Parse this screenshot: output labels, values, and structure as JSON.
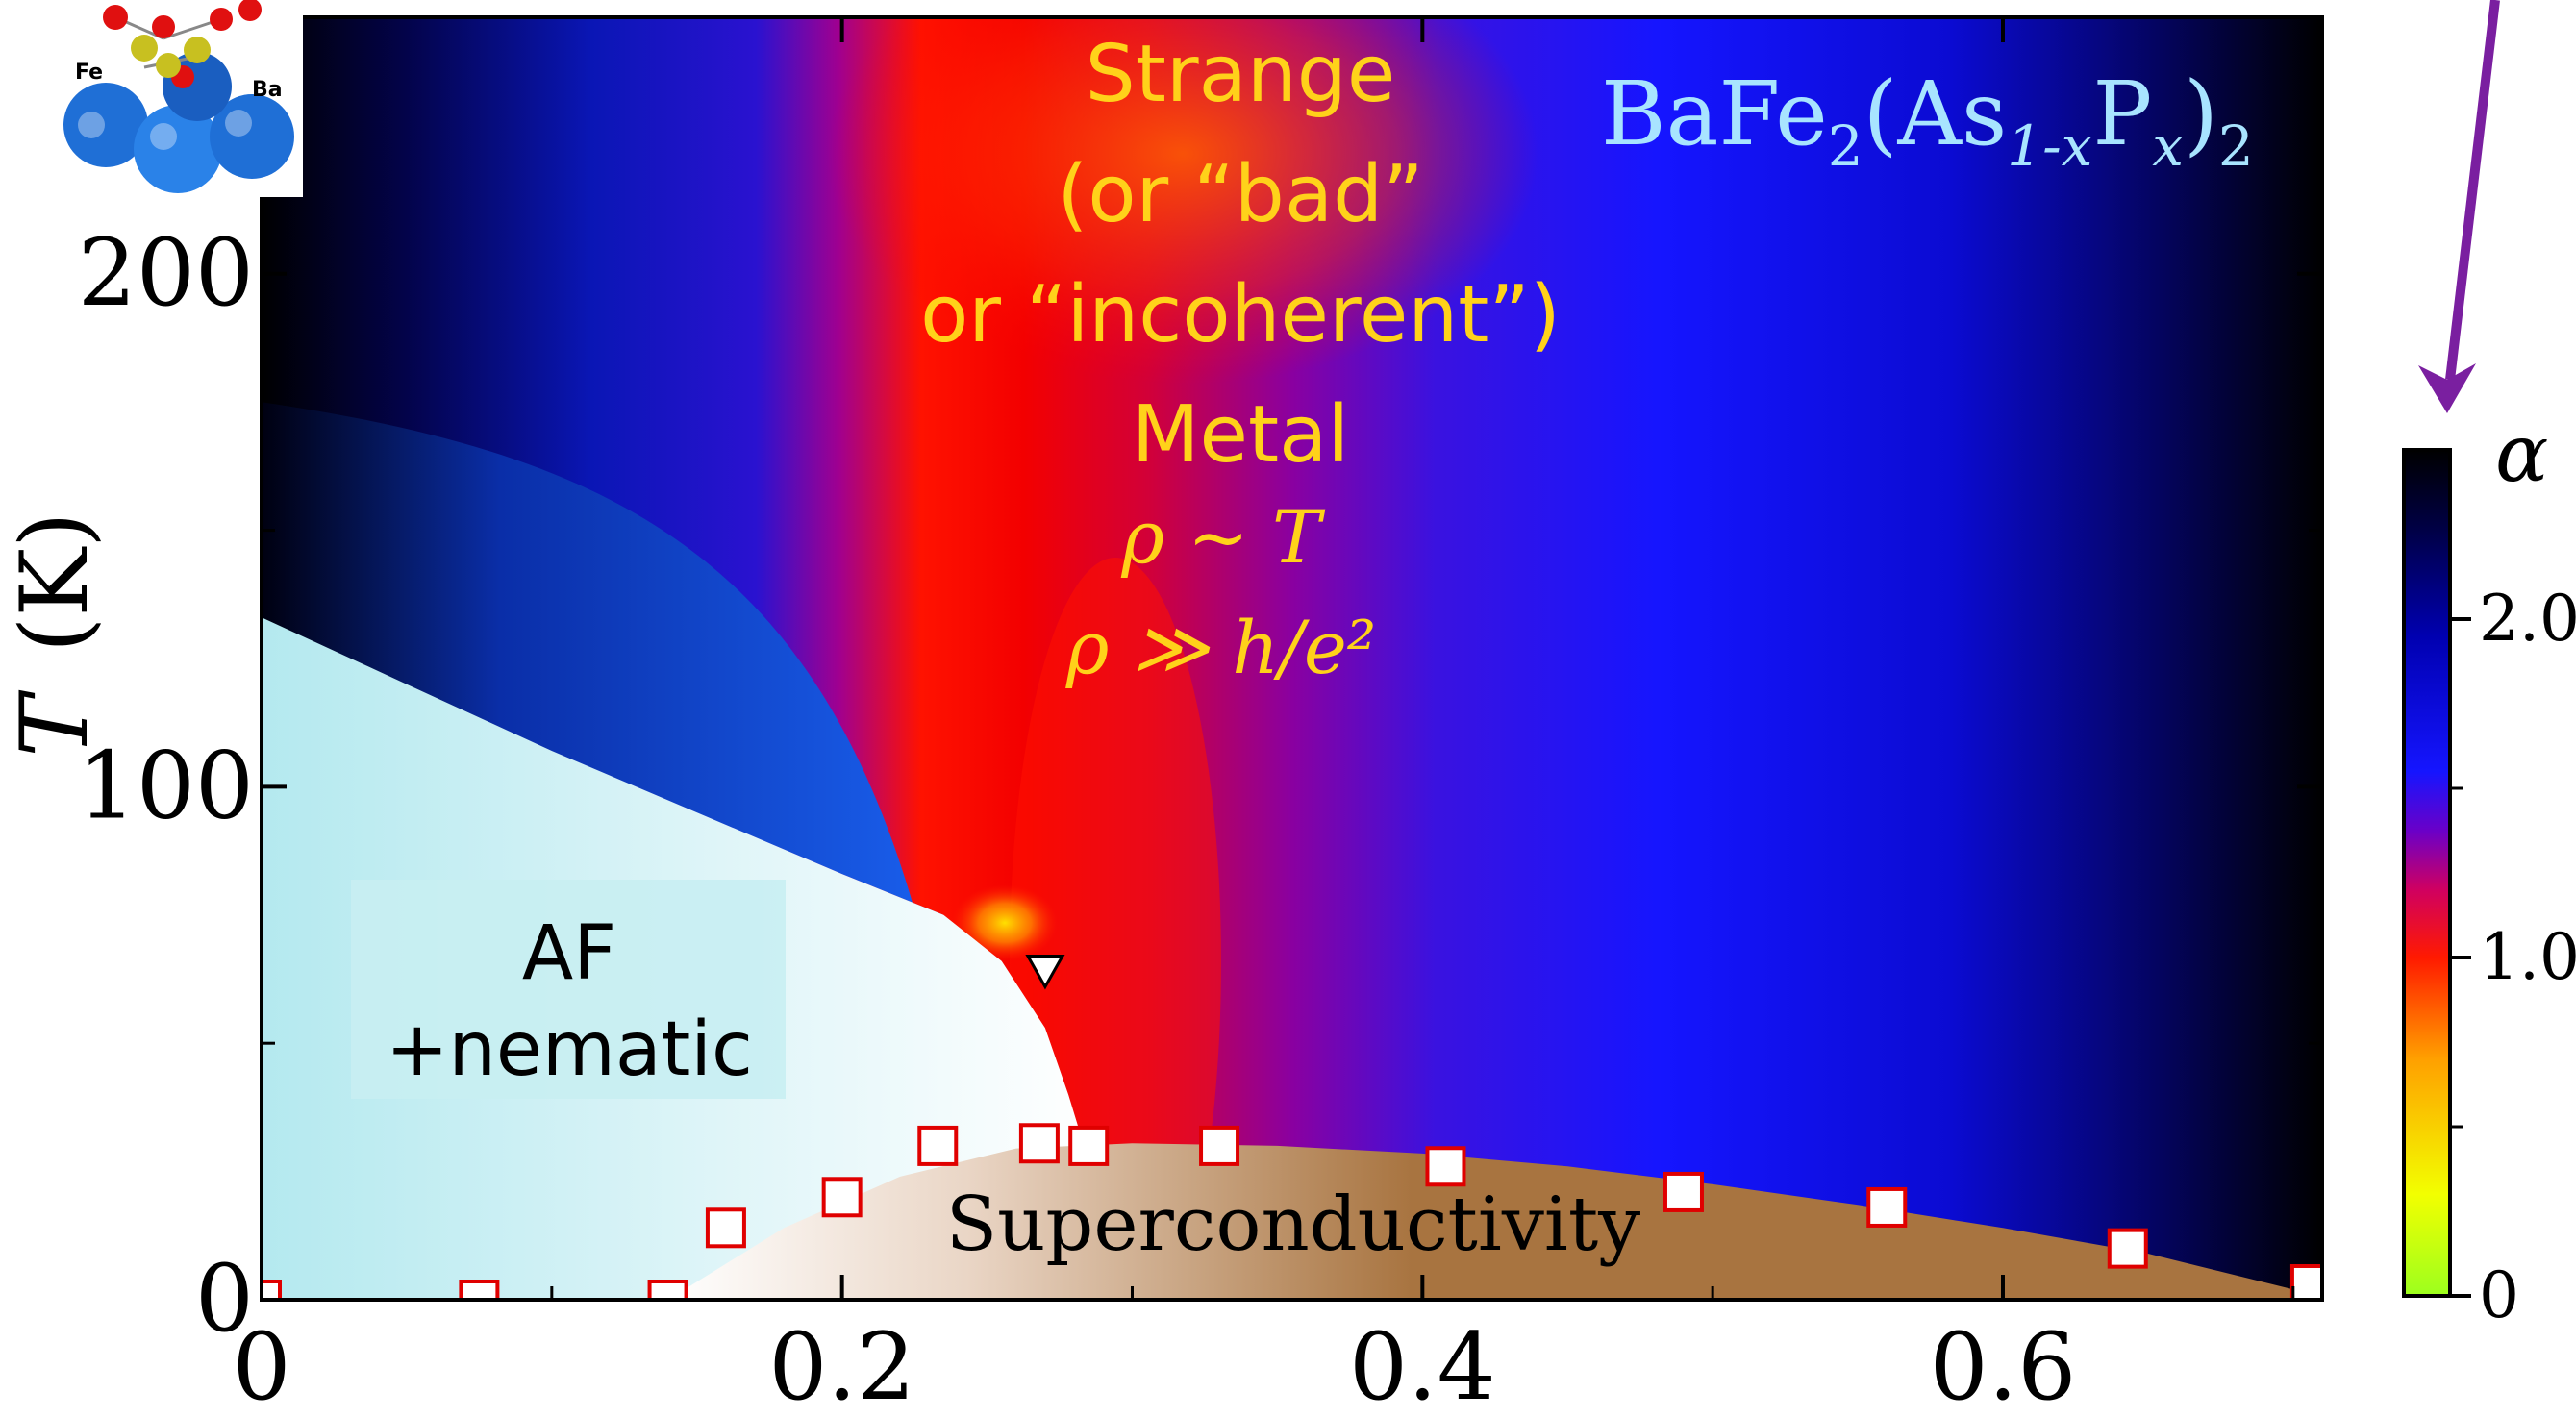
{
  "chart_data": {
    "type": "heatmap",
    "xlabel": "",
    "ylabel": "T (K)",
    "ylabel_italic": "T",
    "ylabel_rest": "(K)",
    "xlim": [
      0,
      0.71
    ],
    "ylim": [
      0,
      250
    ],
    "x_ticks": [
      "0",
      "0.2",
      "0.4",
      "0.6"
    ],
    "y_ticks": [
      "0",
      "100",
      "200"
    ],
    "x_tick_values": [
      0,
      0.2,
      0.4,
      0.6
    ],
    "y_tick_values": [
      0,
      100,
      200
    ],
    "material": {
      "base": "BaFe",
      "sub1": "2",
      "mid1": "(As",
      "sub2": "1-x",
      "mid2": "P",
      "sub3": "x",
      "close": ")",
      "sub4": "2"
    },
    "regions": {
      "strange_metal": [
        "Strange",
        "(or “bad”",
        "or “incoherent”)",
        "Metal"
      ],
      "rho_line1": "ρ ∼ T",
      "rho_line2": "ρ ≫ h/e²",
      "af": [
        "AF",
        "+nematic"
      ],
      "superconductivity": "Superconductivity"
    },
    "colorbar": {
      "label": "α",
      "ticks": [
        "0",
        "1.0",
        "2.0"
      ],
      "tick_values": [
        0,
        1.0,
        2.0
      ],
      "range": [
        0,
        2.5
      ],
      "colors": [
        "#9cff1e",
        "#f2ff00",
        "#ffc000",
        "#ff6a00",
        "#ff1a00",
        "#ee0000",
        "#b0006a",
        "#6a00c8",
        "#1515ff",
        "#0000c8",
        "#00006e",
        "#000000"
      ]
    },
    "af_boundary": {
      "x": [
        0,
        0.05,
        0.1,
        0.15,
        0.2,
        0.235,
        0.255,
        0.27,
        0.278,
        0.285
      ],
      "T": [
        133,
        120,
        107,
        95,
        83,
        75,
        66,
        53,
        40,
        27
      ]
    },
    "sc_dome": {
      "x": [
        0.14,
        0.18,
        0.22,
        0.26,
        0.3,
        0.35,
        0.4,
        0.45,
        0.5,
        0.55,
        0.6,
        0.65,
        0.7
      ],
      "T": [
        0,
        14,
        24,
        29.5,
        30.5,
        30,
        28.5,
        26,
        22.5,
        18.5,
        14,
        9,
        2
      ]
    },
    "tc_points": {
      "x": [
        0,
        0.075,
        0.14,
        0.16,
        0.2,
        0.233,
        0.268,
        0.285,
        0.33,
        0.408,
        0.49,
        0.56,
        0.643,
        0.706
      ],
      "T": [
        0,
        0,
        0,
        14,
        20,
        30,
        30.5,
        30,
        30,
        26,
        21,
        18,
        10,
        3
      ]
    },
    "structural_transition_marker": {
      "x": 0.27,
      "T": 64
    },
    "colors": {
      "af_region": "#c8eef2",
      "sc_region": "#a87440",
      "tc_marker_edge": "#e00000",
      "arrow": "#7a1fa0",
      "strange_label": "#ffd21a",
      "material_label": "#a8e4ff"
    }
  }
}
